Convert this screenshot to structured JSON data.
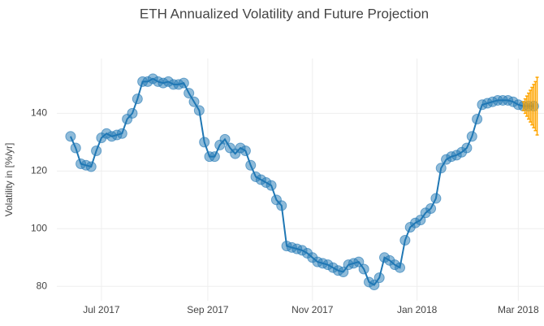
{
  "chart_data": {
    "type": "scatter",
    "title": "ETH Annualized Volatility and Future Projection",
    "y_label": "Volatility in [%/yr]",
    "xlim": [
      "2017-06-05",
      "2018-03-16"
    ],
    "ylim": [
      75,
      159
    ],
    "xticks": [
      {
        "value": "2017-07-01",
        "label": "Jul 2017"
      },
      {
        "value": "2017-09-01",
        "label": "Sep 2017"
      },
      {
        "value": "2017-11-01",
        "label": "Nov 2017"
      },
      {
        "value": "2018-01-01",
        "label": "Jan 2018"
      },
      {
        "value": "2018-03-01",
        "label": "Mar 2018"
      }
    ],
    "yticks": [
      80,
      100,
      120,
      140
    ],
    "grid": true,
    "series": [
      {
        "color": "#1f77b4",
        "x": [
          "2017-06-13",
          "2017-06-16",
          "2017-06-19",
          "2017-06-22",
          "2017-06-25",
          "2017-06-28",
          "2017-07-01",
          "2017-07-04",
          "2017-07-07",
          "2017-07-10",
          "2017-07-13",
          "2017-07-16",
          "2017-07-19",
          "2017-07-22",
          "2017-07-25",
          "2017-07-28",
          "2017-07-31",
          "2017-08-03",
          "2017-08-06",
          "2017-08-09",
          "2017-08-12",
          "2017-08-15",
          "2017-08-18",
          "2017-08-21",
          "2017-08-24",
          "2017-08-27",
          "2017-08-30",
          "2017-09-02",
          "2017-09-05",
          "2017-09-08",
          "2017-09-11",
          "2017-09-14",
          "2017-09-17",
          "2017-09-20",
          "2017-09-23",
          "2017-09-26",
          "2017-09-29",
          "2017-10-02",
          "2017-10-05",
          "2017-10-08",
          "2017-10-11",
          "2017-10-14",
          "2017-10-17",
          "2017-10-20",
          "2017-10-23",
          "2017-10-26",
          "2017-10-29",
          "2017-11-01",
          "2017-11-04",
          "2017-11-07",
          "2017-11-10",
          "2017-11-13",
          "2017-11-16",
          "2017-11-19",
          "2017-11-22",
          "2017-11-25",
          "2017-11-28",
          "2017-12-01",
          "2017-12-04",
          "2017-12-07",
          "2017-12-10",
          "2017-12-13",
          "2017-12-16",
          "2017-12-19",
          "2017-12-22",
          "2017-12-25",
          "2017-12-28",
          "2017-12-31",
          "2018-01-03",
          "2018-01-06",
          "2018-01-09",
          "2018-01-12",
          "2018-01-15",
          "2018-01-18",
          "2018-01-21",
          "2018-01-24",
          "2018-01-27",
          "2018-01-30",
          "2018-02-02",
          "2018-02-05",
          "2018-02-08",
          "2018-02-11",
          "2018-02-14",
          "2018-02-17",
          "2018-02-20",
          "2018-02-23",
          "2018-02-26",
          "2018-03-01",
          "2018-03-04",
          "2018-03-07",
          "2018-03-10"
        ],
        "values": [
          132,
          128,
          122.5,
          122,
          121.5,
          127,
          131.5,
          133,
          132,
          132.5,
          133,
          138,
          140,
          145,
          151,
          151,
          152,
          151,
          150.5,
          151,
          150,
          150,
          150.5,
          147,
          144,
          141,
          130,
          125,
          125,
          129,
          131,
          128,
          126,
          128,
          127,
          122,
          118,
          117,
          116,
          115,
          110,
          108,
          94,
          93.5,
          93,
          92.5,
          91.5,
          90,
          88.5,
          88,
          87.5,
          86.5,
          85.5,
          85,
          87.5,
          88,
          88.5,
          86,
          81.5,
          80.5,
          83,
          90,
          89,
          87.5,
          86.5,
          96,
          100.5,
          102,
          103,
          105.5,
          107,
          110.5,
          121,
          124,
          125,
          125.5,
          126.5,
          128,
          132,
          138,
          143,
          143.5,
          144,
          144.5,
          144.5,
          144.5,
          144,
          143,
          142.5,
          142.5,
          142.5
        ]
      },
      {
        "color": "#FFA500",
        "x": [
          "2018-03-04",
          "2018-03-05",
          "2018-03-06",
          "2018-03-07",
          "2018-03-08",
          "2018-03-09",
          "2018-03-10",
          "2018-03-11",
          "2018-03-12"
        ],
        "values": [
          142.5,
          142.5,
          142.5,
          142.5,
          142.5,
          142.5,
          142.5,
          142.5,
          142.5
        ],
        "errors": [
          1.5,
          2.5,
          3.5,
          4.5,
          5.5,
          6.5,
          7.5,
          8.5,
          10
        ]
      }
    ]
  }
}
